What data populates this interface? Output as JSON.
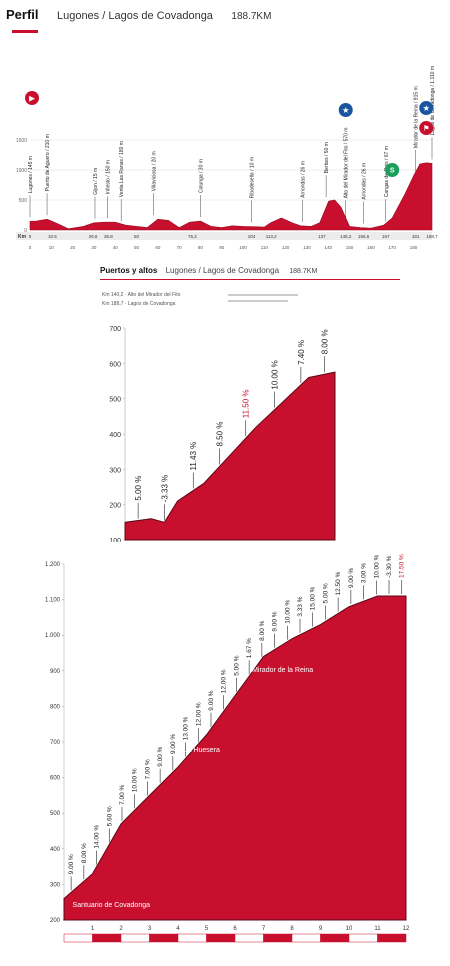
{
  "header": {
    "title": "Perfil",
    "route": "Lugones / Lagos de Covadonga",
    "distance": "188.7KM"
  },
  "colors": {
    "fill": "#c8102e",
    "fill_dark": "#9b0c1f",
    "accent": "#c8102e",
    "sprint": "#1aa05a",
    "kom": "#1b55a0"
  },
  "icons": [
    "start-icon",
    "kom-icon",
    "sprint-icon",
    "finish-icon"
  ],
  "climb_header": {
    "title": "Puertos y altos",
    "route": "Lugones / Lagos de Covadonga",
    "distance": "188.7KM",
    "info": [
      "Km 140,2 · Alto del Mirador del Fito",
      "Km 188,7 · Lagos de Covadonga"
    ]
  },
  "chart_data": [
    {
      "type": "area",
      "title": "Perfil",
      "xlabel": "Km",
      "ylabel": "",
      "ylim": [
        0,
        1500
      ],
      "xlim": [
        0,
        188.7
      ],
      "x_ticks": [
        0,
        10,
        20,
        30,
        40,
        50,
        60,
        70,
        80,
        90,
        100,
        110,
        120,
        130,
        140,
        150,
        160,
        170,
        180
      ],
      "y_ticks": [
        0,
        500,
        1000,
        1500
      ],
      "x": [
        0,
        3,
        8,
        12,
        18,
        25,
        30,
        35,
        40,
        45,
        55,
        60,
        65,
        70,
        75,
        80,
        85,
        90,
        95,
        100,
        110,
        113,
        118,
        123,
        127,
        132,
        136,
        140.2,
        143,
        146,
        150,
        155,
        160,
        166,
        170,
        173,
        176,
        180,
        183,
        186,
        188.7
      ],
      "y": [
        145,
        150,
        180,
        120,
        20,
        60,
        120,
        130,
        130,
        80,
        40,
        180,
        160,
        40,
        130,
        150,
        60,
        40,
        70,
        60,
        50,
        120,
        200,
        120,
        70,
        60,
        120,
        480,
        500,
        380,
        60,
        40,
        30,
        80,
        200,
        400,
        600,
        900,
        1100,
        1120,
        1110
      ],
      "places": [
        {
          "name": "Lugones / 145 m",
          "km": 0
        },
        {
          "name": "Puerto de Aguero / 210 m",
          "km": 8
        },
        {
          "name": "Gijon / 15 m",
          "km": 30.5
        },
        {
          "name": "Infiesto / 150 m",
          "km": 36.5
        },
        {
          "name": "Venta Las Ranas / 180 m",
          "km": 42.8
        },
        {
          "name": "Villaviciosa / 20 m",
          "km": 58
        },
        {
          "name": "Colunga / 30 m",
          "km": 80
        },
        {
          "name": "Ribadesella / 10 m",
          "km": 104
        },
        {
          "name": "Arriondas / 26 m",
          "km": 128
        },
        {
          "name": "Berbes / 50 m",
          "km": 139
        },
        {
          "name": "Alto del Mirador del Fito / 570 m",
          "km": 148.2
        },
        {
          "name": "Arriondas / 26 m",
          "km": 156.6
        },
        {
          "name": "Cangas de Onis / 67 m",
          "km": 167
        },
        {
          "name": "Mirador de la Reina / 915 m",
          "km": 181
        },
        {
          "name": "Lagos de Covadonga / 1.110 m",
          "km": 188.7
        }
      ],
      "km_markers": [
        "0",
        "10.5",
        "29,6",
        "36.8",
        "50",
        "76,2",
        "104",
        "113,2",
        "137",
        "148,2",
        "156,6",
        "167",
        "181",
        "188,7"
      ]
    },
    {
      "type": "area",
      "title": "Alto del Mirador del Fito",
      "xlabel": "",
      "ylabel": "",
      "ylim": [
        100,
        700
      ],
      "y_ticks": [
        100,
        200,
        300,
        400,
        500,
        600,
        700
      ],
      "x": [
        0,
        1,
        1.5,
        2,
        3,
        4,
        5,
        6,
        7,
        8
      ],
      "y": [
        150,
        160,
        150,
        210,
        260,
        340,
        420,
        490,
        560,
        575
      ],
      "gradients": [
        "5.00 %",
        "-3.33 %",
        "11.43 %",
        "8.50 %",
        "11.50 %",
        "10.00 %",
        "7.40 %",
        "8.00 %"
      ]
    },
    {
      "type": "area",
      "title": "Lagos de Covadonga",
      "xlabel": "",
      "ylabel": "",
      "ylim": [
        200,
        1200
      ],
      "y_ticks": [
        "200",
        "300",
        "400",
        "500",
        "600",
        "700",
        "800",
        "900",
        "1.000",
        "1.100",
        "1.200"
      ],
      "x": [
        0,
        1,
        2,
        3,
        4,
        5,
        6,
        7,
        8,
        9,
        10,
        11,
        12
      ],
      "y": [
        260,
        330,
        470,
        550,
        630,
        720,
        830,
        940,
        990,
        1030,
        1080,
        1110,
        1110
      ],
      "x_ticks": [
        "1",
        "2",
        "3",
        "4",
        "5",
        "6",
        "7",
        "8",
        "9",
        "10",
        "11",
        "12"
      ],
      "gradients": [
        "9.00 %",
        "8.00 %",
        "14.00 %",
        "5.60 %",
        "7.00 %",
        "10.00 %",
        "7.00 %",
        "9.00 %",
        "9.00 %",
        "13.00 %",
        "12.00 %",
        "9.00 %",
        "12.00 %",
        "5.00 %",
        "1.67 %",
        "8.00 %",
        "9.00 %",
        "10.00 %",
        "3.33 %",
        "15.00 %",
        "5.00 %",
        "12.50 %",
        "9.00 %",
        "3.00 %",
        "10.00 %",
        "-3.30 %",
        "17.50 %"
      ],
      "annotations": [
        "Santuario de Covadonga",
        "La Huesera",
        "Mirador de la Reina"
      ]
    }
  ]
}
